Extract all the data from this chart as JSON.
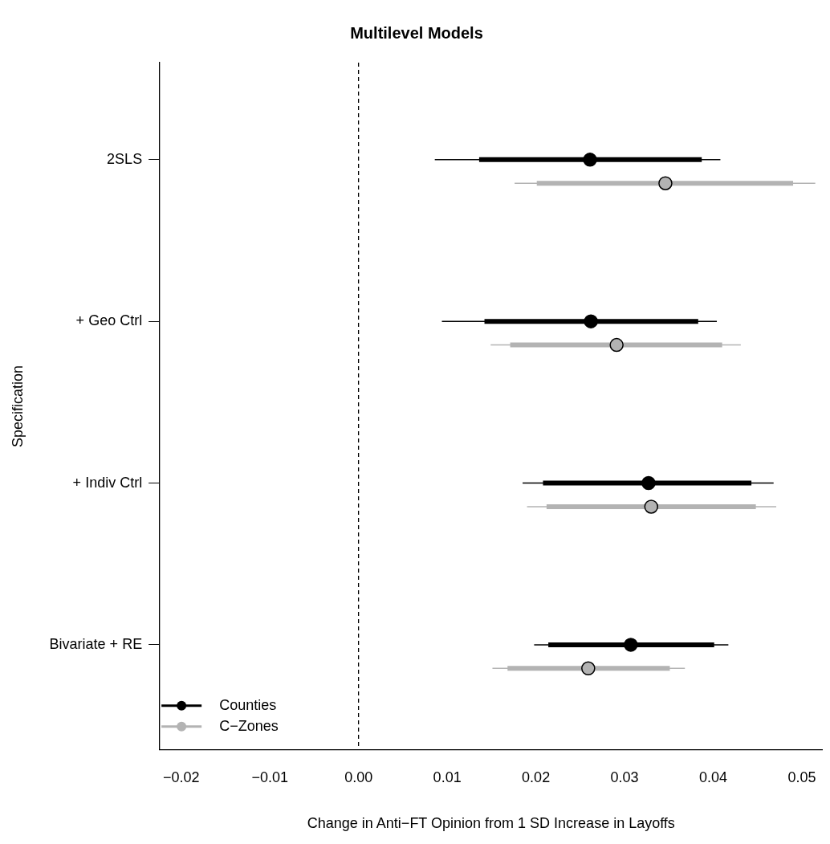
{
  "chart_data": {
    "type": "scatter",
    "orientation": "horizontal",
    "title": "Multilevel Models",
    "xlabel": "Change in Anti−FT Opinion from 1 SD Increase in Layoffs",
    "ylabel": "Specification",
    "categories": [
      "2SLS",
      "+ Geo Ctrl",
      "+ Indiv Ctrl",
      "Bivariate + RE"
    ],
    "xlim": [
      -0.0224,
      0.0523
    ],
    "xticks": [
      {
        "value": -0.02,
        "label": "−0.02"
      },
      {
        "value": -0.01,
        "label": "−0.01"
      },
      {
        "value": 0,
        "label": "0.00"
      },
      {
        "value": 0.01,
        "label": "0.01"
      },
      {
        "value": 0.02,
        "label": "0.02"
      },
      {
        "value": 0.03,
        "label": "0.03"
      },
      {
        "value": 0.04,
        "label": "0.04"
      },
      {
        "value": 0.05,
        "label": "0.05"
      }
    ],
    "series": [
      {
        "type": "bar",
        "color": "#000000",
        "base": [
          0.0136,
          0.0142,
          0.0208,
          0.0214
        ],
        "values": [
          0.0251,
          0.0241,
          0.0235,
          0.0187
        ]
      },
      {
        "type": "bar",
        "color": "#b3b3b3",
        "base": [
          0.0201,
          0.0171,
          0.0212,
          0.0168
        ],
        "values": [
          0.0289,
          0.0239,
          0.0236,
          0.0183
        ]
      },
      {
        "type": "scatter",
        "name": "Counties",
        "color": "#000000",
        "values": [
          0.0261,
          0.0262,
          0.0327,
          0.0307
        ],
        "errors": [
          [
            0.0086,
            0.0408
          ],
          [
            0.0094,
            0.0404
          ],
          [
            0.0185,
            0.0468
          ],
          [
            0.0198,
            0.0417
          ]
        ]
      },
      {
        "type": "scatter",
        "name": "C−Zones",
        "color": "#b3b3b3",
        "values": [
          0.0346,
          0.0291,
          0.033,
          0.0259
        ],
        "errors": [
          [
            0.0176,
            0.0515
          ],
          [
            0.0149,
            0.0431
          ],
          [
            0.019,
            0.0471
          ],
          [
            0.0151,
            0.0368
          ]
        ]
      }
    ],
    "ref_lines": [
      {
        "axis": "x",
        "value": 0,
        "line_style": "dashed",
        "color": "#000000"
      }
    ],
    "marker": "circle",
    "legend": "bottom left",
    "grid": false
  }
}
